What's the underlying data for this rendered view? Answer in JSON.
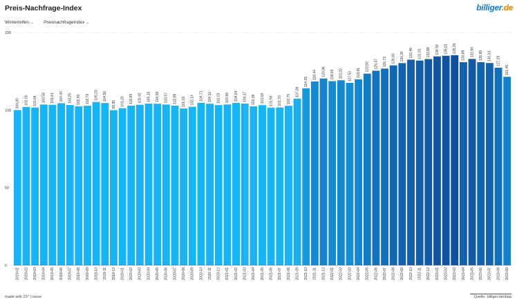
{
  "header": {
    "title": "Preis-Nachfrage-Index",
    "logo_main": "billiger",
    "logo_tld": ".de"
  },
  "filters": [
    {
      "label": "Winterreifen",
      "icon": "chevron-down-icon"
    },
    {
      "label": "Preisnachfrageindex",
      "icon": "chevron-down-icon"
    }
  ],
  "footer": {
    "made_with": "made with 23° | reuse",
    "source": "Quelle: billiger.de/data"
  },
  "chart_data": {
    "type": "bar",
    "title": "",
    "xlabel": "",
    "ylabel": "",
    "ylim": [
      0,
      150
    ],
    "yticks": [
      0,
      50,
      100,
      150
    ],
    "grid": "horizontal dotted at 150",
    "categories": [
      "2019-01",
      "2019-02",
      "2019-03",
      "2019-04",
      "2019-05",
      "2019-06",
      "2019-07",
      "2019-08",
      "2019-09",
      "2019-10",
      "2019-11",
      "2019-12",
      "2020-01",
      "2020-02",
      "2020-03",
      "2020-04",
      "2020-05",
      "2020-06",
      "2020-07",
      "2020-08",
      "2020-09",
      "2020-10",
      "2020-11",
      "2020-12",
      "2021-01",
      "2021-02",
      "2021-03",
      "2021-04",
      "2021-05",
      "2021-06",
      "2021-07",
      "2021-08",
      "2021-09",
      "2021-10",
      "2021-11",
      "2021-12",
      "2022-01",
      "2022-02",
      "2022-03",
      "2022-04",
      "2022-05",
      "2022-06",
      "2022-07",
      "2022-08",
      "2022-09",
      "2022-10",
      "2022-11",
      "2022-12",
      "2023-01",
      "2023-02",
      "2023-03",
      "2023-04",
      "2023-05",
      "2023-06",
      "2023-07",
      "2023-08",
      "2023-09"
    ],
    "values": [
      100.0,
      102.0,
      101.64,
      103.58,
      103.41,
      104.43,
      103.25,
      102.45,
      102.79,
      105.23,
      104.55,
      99.95,
      101.2,
      102.85,
      103.42,
      104.16,
      104.08,
      103.57,
      102.89,
      101.03,
      102.14,
      104.71,
      104.1,
      103.19,
      103.59,
      104.64,
      104.17,
      102.39,
      103.18,
      101.56,
      101.7,
      102.75,
      107.36,
      114.05,
      118.44,
      120.36,
      118.65,
      119.2,
      117.53,
      119.81,
      123.5,
      125.37,
      126.73,
      128.8,
      130.26,
      132.48,
      131.91,
      132.88,
      134.59,
      135.01,
      135.35,
      130.89,
      132.96,
      130.85,
      130.33,
      127.29,
      121.45
    ],
    "value_labels": [
      "100,00",
      "102,00",
      "101,64",
      "103,58",
      "103,41",
      "104,43",
      "103,25",
      "102,45",
      "102,79",
      "105,23",
      "104,55",
      "99,95",
      "101,20",
      "102,85",
      "103,42",
      "104,16",
      "104,08",
      "103,57",
      "102,89",
      "101,03",
      "102,14",
      "104,71",
      "104,10",
      "103,19",
      "103,59",
      "104,64",
      "104,17",
      "102,39",
      "103,18",
      "101,56",
      "101,70",
      "102,75",
      "107,36",
      "114,05",
      "118,44",
      "120,36",
      "118,65",
      "119,20",
      "117,53",
      "119,81",
      "123,50",
      "125,37",
      "126,73",
      "128,80",
      "130,26",
      "132,48",
      "131,91",
      "132,88",
      "134,59",
      "135,01",
      "135,35",
      "130,89",
      "132,96",
      "130,85",
      "130,33",
      "127,29",
      "121,45"
    ],
    "colors": {
      "low": "#19b4f5",
      "high": "#1152a0",
      "text": "#333333",
      "axis": "#666666"
    }
  }
}
